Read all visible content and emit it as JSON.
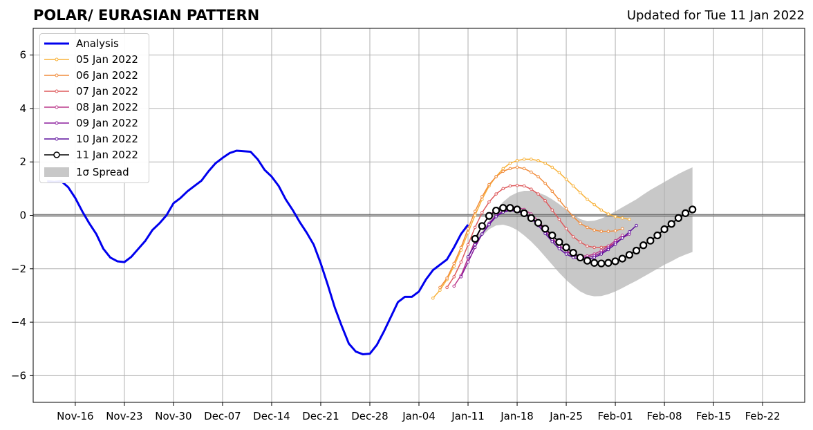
{
  "header": {
    "title": "POLAR/ EURASIAN  PATTERN",
    "updated": "Updated for Tue 11 Jan 2022"
  },
  "chart_data": {
    "type": "line",
    "title": "POLAR/ EURASIAN  PATTERN",
    "subtitle": "Updated for Tue 11 Jan 2022",
    "xlabel": "",
    "ylabel": "",
    "x_unit": "days relative to Nov-16 2021 axis",
    "xlim": [
      "2021-11-10",
      "2022-02-28"
    ],
    "ylim": [
      -7,
      7
    ],
    "y_ticks": [
      -6,
      -4,
      -2,
      0,
      2,
      4,
      6
    ],
    "y_tick_labels": [
      "−6",
      "−4",
      "−2",
      "0",
      "2",
      "4",
      "6"
    ],
    "x_ticks": [
      "2021-11-16",
      "2021-11-23",
      "2021-11-30",
      "2021-12-07",
      "2021-12-14",
      "2021-12-21",
      "2021-12-28",
      "2022-01-04",
      "2022-01-11",
      "2022-01-18",
      "2022-01-25",
      "2022-02-01",
      "2022-02-08",
      "2022-02-15",
      "2022-02-22"
    ],
    "x_tick_labels": [
      "Nov-16",
      "Nov-23",
      "Nov-30",
      "Dec-07",
      "Dec-14",
      "Dec-21",
      "Dec-28",
      "Jan-04",
      "Jan-11",
      "Jan-18",
      "Jan-25",
      "Feb-01",
      "Feb-08",
      "Feb-15",
      "Feb-22"
    ],
    "grid": true,
    "zero_line": true,
    "legend_position": "top-left",
    "analysis": {
      "name": "Analysis",
      "color": "#0000ee",
      "start": "2021-11-12",
      "values": [
        1.28,
        1.25,
        1.28,
        1.05,
        0.65,
        0.15,
        -0.3,
        -0.7,
        -1.25,
        -1.58,
        -1.72,
        -1.75,
        -1.55,
        -1.25,
        -0.95,
        -0.55,
        -0.3,
        0.0,
        0.45,
        0.65,
        0.9,
        1.1,
        1.3,
        1.65,
        1.95,
        2.15,
        2.33,
        2.42,
        2.4,
        2.38,
        2.1,
        1.7,
        1.45,
        1.1,
        0.6,
        0.2,
        -0.25,
        -0.65,
        -1.1,
        -1.8,
        -2.6,
        -3.45,
        -4.15,
        -4.8,
        -5.1,
        -5.2,
        -5.18,
        -4.85,
        -4.35,
        -3.8,
        -3.25,
        -3.05,
        -3.05,
        -2.85,
        -2.4,
        -2.05,
        -1.85,
        -1.65,
        -1.2,
        -0.7,
        -0.35
      ]
    },
    "forecasts": [
      {
        "name": "05 Jan 2022",
        "color": "#f8b23a",
        "start": "2022-01-06",
        "values": [
          -3.1,
          -2.8,
          -2.4,
          -1.9,
          -1.3,
          -0.65,
          0.0,
          0.6,
          1.1,
          1.45,
          1.75,
          1.95,
          2.05,
          2.1,
          2.1,
          2.05,
          1.95,
          1.8,
          1.6,
          1.35,
          1.1,
          0.85,
          0.6,
          0.4,
          0.2,
          0.05,
          -0.05,
          -0.1,
          -0.15
        ]
      },
      {
        "name": "06 Jan 2022",
        "color": "#f18c3c",
        "start": "2022-01-07",
        "values": [
          -2.7,
          -2.35,
          -1.8,
          -1.2,
          -0.5,
          0.15,
          0.7,
          1.15,
          1.45,
          1.65,
          1.75,
          1.8,
          1.75,
          1.62,
          1.45,
          1.2,
          0.9,
          0.58,
          0.25,
          -0.05,
          -0.3,
          -0.45,
          -0.55,
          -0.6,
          -0.6,
          -0.58,
          -0.5
        ]
      },
      {
        "name": "07 Jan 2022",
        "color": "#de5a5c",
        "start": "2022-01-08",
        "values": [
          -2.7,
          -2.3,
          -1.75,
          -1.1,
          -0.45,
          0.1,
          0.5,
          0.8,
          1.0,
          1.1,
          1.12,
          1.1,
          0.98,
          0.8,
          0.55,
          0.2,
          -0.15,
          -0.5,
          -0.8,
          -1.0,
          -1.15,
          -1.2,
          -1.2,
          -1.15,
          -1.05
        ]
      },
      {
        "name": "08 Jan 2022",
        "color": "#bc3a8c",
        "start": "2022-01-09",
        "values": [
          -2.65,
          -2.25,
          -1.6,
          -0.95,
          -0.4,
          0.0,
          0.22,
          0.3,
          0.32,
          0.3,
          0.22,
          0.05,
          -0.2,
          -0.5,
          -0.85,
          -1.12,
          -1.32,
          -1.45,
          -1.52,
          -1.52,
          -1.45,
          -1.32,
          -1.15,
          -0.95,
          -0.75
        ]
      },
      {
        "name": "09 Jan 2022",
        "color": "#8a1c9c",
        "start": "2022-01-10",
        "values": [
          -2.3,
          -1.75,
          -1.2,
          -0.7,
          -0.3,
          0.0,
          0.15,
          0.2,
          0.18,
          0.1,
          -0.08,
          -0.3,
          -0.6,
          -0.9,
          -1.15,
          -1.35,
          -1.5,
          -1.58,
          -1.58,
          -1.52,
          -1.4,
          -1.22,
          -1.02,
          -0.85,
          -0.7
        ]
      },
      {
        "name": "10 Jan 2022",
        "color": "#5c0e9c",
        "start": "2022-01-11",
        "values": [
          -1.55,
          -1.1,
          -0.7,
          -0.35,
          -0.05,
          0.12,
          0.18,
          0.15,
          0.05,
          -0.12,
          -0.38,
          -0.68,
          -0.98,
          -1.25,
          -1.45,
          -1.58,
          -1.65,
          -1.65,
          -1.58,
          -1.45,
          -1.28,
          -1.08,
          -0.85,
          -0.62,
          -0.38
        ]
      },
      {
        "name": "11 Jan 2022",
        "color": "#000000",
        "start": "2022-01-12",
        "values": [
          -0.88,
          -0.4,
          -0.02,
          0.18,
          0.28,
          0.28,
          0.22,
          0.08,
          -0.1,
          -0.28,
          -0.5,
          -0.75,
          -1.0,
          -1.2,
          -1.4,
          -1.58,
          -1.7,
          -1.78,
          -1.8,
          -1.78,
          -1.72,
          -1.62,
          -1.48,
          -1.32,
          -1.12,
          -0.95,
          -0.75,
          -0.52,
          -0.32,
          -0.1,
          0.08,
          0.22
        ]
      }
    ],
    "spread": {
      "name": "1σ Spread",
      "color": "#c8c8c8",
      "start": "2022-01-12",
      "upper": [
        -0.85,
        -0.6,
        -0.2,
        0.2,
        0.5,
        0.72,
        0.85,
        0.92,
        0.92,
        0.85,
        0.75,
        0.6,
        0.42,
        0.22,
        0.02,
        -0.14,
        -0.22,
        -0.2,
        -0.12,
        0.0,
        0.15,
        0.3,
        0.45,
        0.6,
        0.78,
        0.95,
        1.1,
        1.25,
        1.4,
        1.55,
        1.68,
        1.8
      ],
      "lower": [
        -1.05,
        -0.78,
        -0.52,
        -0.38,
        -0.35,
        -0.42,
        -0.55,
        -0.75,
        -0.98,
        -1.25,
        -1.55,
        -1.85,
        -2.15,
        -2.42,
        -2.65,
        -2.85,
        -2.98,
        -3.03,
        -3.02,
        -2.95,
        -2.85,
        -2.72,
        -2.58,
        -2.45,
        -2.3,
        -2.15,
        -2.0,
        -1.85,
        -1.72,
        -1.58,
        -1.47,
        -1.37
      ]
    }
  }
}
